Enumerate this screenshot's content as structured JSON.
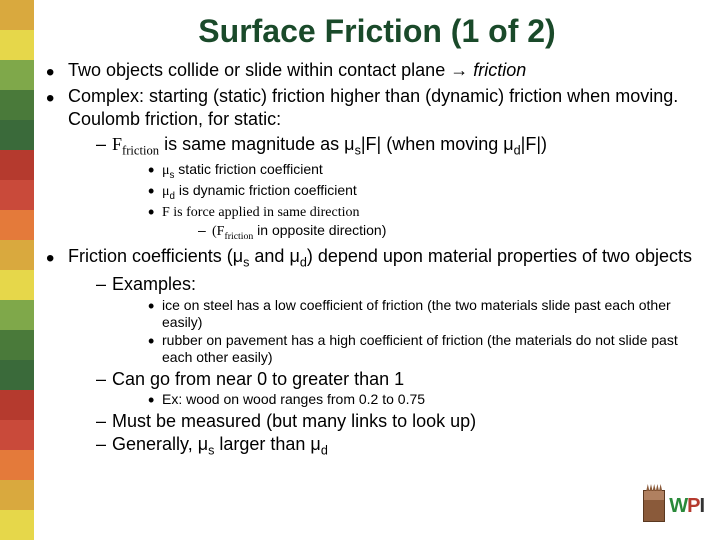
{
  "stripes": [
    "#d9a93e",
    "#e6d74a",
    "#7fa84a",
    "#4a7a3a",
    "#3a6a3a",
    "#b53a2e",
    "#c94a3a",
    "#e47a3a",
    "#d9a93e",
    "#e6d74a",
    "#7fa84a",
    "#4a7a3a",
    "#3a6a3a",
    "#b53a2e",
    "#c94a3a",
    "#e47a3a",
    "#d9a93e",
    "#e6d74a"
  ],
  "title": {
    "text": "Surface Friction (1 of 2)",
    "color": "#1a4a2a",
    "fontsize": 32
  },
  "body_fontsize": 18,
  "small_fontsize": 14,
  "bullets": {
    "b1": "Two objects collide or slide within contact plane → ",
    "b1_em": "friction",
    "b2": "Complex: starting (static) friction higher than (dynamic) friction when moving.  Coulomb friction, for static:",
    "b2_s1_pre": "F",
    "b2_s1_sub": "friction",
    "b2_s1_mid": " is same magnitude as μ",
    "b2_s1_sub2": "s",
    "b2_s1_mid2": "|F| (when moving μ",
    "b2_s1_sub3": "d",
    "b2_s1_end": "|F|)",
    "b2_s1_a": "μ",
    "b2_s1_a_sub": "s",
    "b2_s1_a_end": " static friction coefficient",
    "b2_s1_b": "μ",
    "b2_s1_b_sub": "d",
    "b2_s1_b_end": " is dynamic friction coefficient",
    "b2_s1_c": "F is force applied in same direction",
    "b2_s1_c_d": "(F",
    "b2_s1_c_d_sub": "friction",
    "b2_s1_c_d_end": " in opposite direction)",
    "b3_pre": "Friction coefficients (μ",
    "b3_sub1": "s",
    "b3_mid": " and μ",
    "b3_sub2": "d",
    "b3_end": ") depend upon material properties of two objects",
    "b3_ex": "Examples:",
    "b3_ex_a": "ice on steel has a low coefficient of friction (the two materials slide past each other easily)",
    "b3_ex_b": "rubber on pavement has a high coefficient of friction (the materials do not slide past each other easily)",
    "b3_range": "Can go from near 0 to greater than 1",
    "b3_range_ex": "Ex: wood on wood ranges from 0.2 to 0.75",
    "b3_meas": "Must be measured (but many links to look up)",
    "b3_gen_pre": "Generally, μ",
    "b3_gen_sub1": "s",
    "b3_gen_mid": " larger than μ",
    "b3_gen_sub2": "d"
  },
  "logo": {
    "w_color": "#2a8a3a",
    "p_color": "#b53a2e",
    "i_color": "#333333",
    "text": "WPI"
  }
}
